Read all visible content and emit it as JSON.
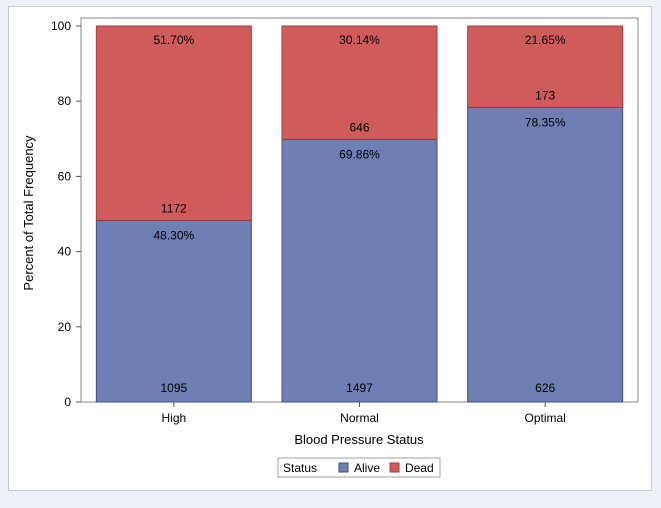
{
  "chart_data": {
    "type": "bar",
    "stacked": true,
    "xlabel": "Blood Pressure Status",
    "ylabel": "Percent of Total Frequency",
    "ylim": [
      0,
      100
    ],
    "yticks": [
      0,
      20,
      40,
      60,
      80,
      100
    ],
    "categories": [
      "High",
      "Normal",
      "Optimal"
    ],
    "series": [
      {
        "name": "Alive",
        "color": "#6f7eb3",
        "values": [
          48.3,
          69.86,
          78.35
        ],
        "percent_labels": [
          "48.30%",
          "69.86%",
          "78.35%"
        ],
        "counts": [
          "1095",
          "1497",
          "626"
        ]
      },
      {
        "name": "Dead",
        "color": "#d05b5b",
        "values": [
          51.7,
          30.14,
          21.65
        ],
        "percent_labels": [
          "51.70%",
          "30.14%",
          "21.65%"
        ],
        "counts": [
          "1172",
          "646",
          "173"
        ]
      }
    ],
    "legend": {
      "title": "Status",
      "position": "bottom"
    },
    "grid": false
  }
}
